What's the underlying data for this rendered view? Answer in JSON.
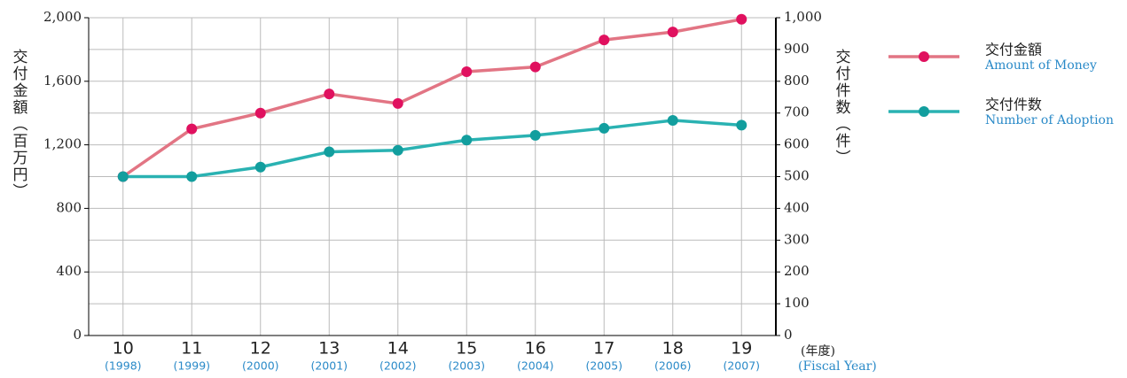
{
  "chart_data": {
    "type": "line",
    "y_label": "交付金額（百万円）",
    "y2_label": "交付件数（件）",
    "x_label": "(年度)",
    "x_label_en": "(Fiscal Year)",
    "categories": [
      "10",
      "11",
      "12",
      "13",
      "14",
      "15",
      "16",
      "17",
      "18",
      "19"
    ],
    "category_years": [
      "(1998)",
      "(1999)",
      "(2000)",
      "(2001)",
      "(2002)",
      "(2003)",
      "(2004)",
      "(2005)",
      "(2006)",
      "(2007)"
    ],
    "series": [
      {
        "name": "交付金額",
        "name_en": "Amount of Money",
        "color": "#e27584",
        "marker_color": "#e0115f",
        "values": [
          1000,
          1300,
          1400,
          1520,
          1460,
          1660,
          1690,
          1860,
          1910,
          1990
        ]
      },
      {
        "name": "交付件数",
        "name_en": "Number of Adoption",
        "color": "#2ab2b2",
        "marker_color": "#129e9e",
        "axis": "y2",
        "values": [
          500,
          500,
          530,
          578,
          583,
          615,
          630,
          652,
          677,
          662
        ]
      }
    ],
    "ylim": [
      0,
      2000
    ],
    "yticks": [
      0,
      400,
      800,
      {
        "value": 1200,
        "label": "1,200"
      },
      {
        "value": 1600,
        "label": "1,600"
      },
      {
        "value": 2000,
        "label": "2,000"
      }
    ],
    "y2lim": [
      0,
      1000
    ],
    "y2ticks": [
      0,
      100,
      200,
      300,
      400,
      500,
      600,
      700,
      800,
      900,
      {
        "value": 1000,
        "label": "1,000"
      }
    ],
    "grid": true
  }
}
